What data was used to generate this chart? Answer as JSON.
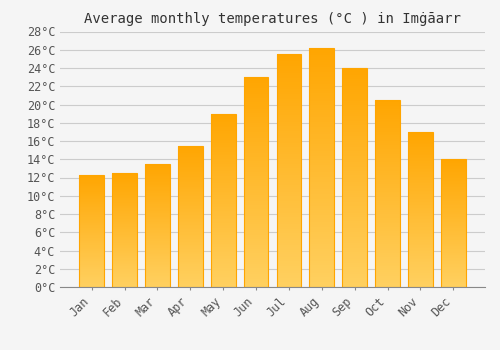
{
  "title": "Average monthly temperatures (°C ) in Imġāarr",
  "months": [
    "Jan",
    "Feb",
    "Mar",
    "Apr",
    "May",
    "Jun",
    "Jul",
    "Aug",
    "Sep",
    "Oct",
    "Nov",
    "Dec"
  ],
  "values": [
    12.3,
    12.5,
    13.5,
    15.5,
    19.0,
    23.0,
    25.5,
    26.2,
    24.0,
    20.5,
    17.0,
    14.0
  ],
  "bar_color_top": "#FFA500",
  "bar_color_bottom": "#FFD060",
  "bar_edge_color": "#FFA500",
  "background_color": "#F5F5F5",
  "plot_bg_color": "#F5F5F5",
  "grid_color": "#CCCCCC",
  "ylim": [
    0,
    28
  ],
  "ytick_step": 2,
  "title_fontsize": 10,
  "tick_fontsize": 8.5,
  "font_family": "monospace",
  "figsize": [
    5.0,
    3.5
  ],
  "dpi": 100
}
